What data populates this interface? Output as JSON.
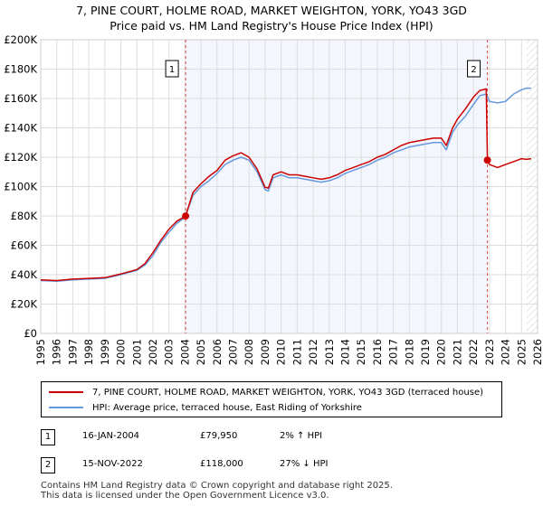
{
  "title_line1": "7, PINE COURT, HOLME ROAD, MARKET WEIGHTON, YORK, YO43 3GD",
  "title_line2": "Price paid vs. HM Land Registry's House Price Index (HPI)",
  "colors": {
    "price_line": "#cc0000",
    "hpi_line": "#6699dd",
    "sale_marker_line": "#dd4444",
    "highlight_band": "#dde6f5",
    "grid": "#dddddd"
  },
  "legend": {
    "price_label": "7, PINE COURT, HOLME ROAD, MARKET WEIGHTON, YORK, YO43 3GD (terraced house)",
    "hpi_label": "HPI: Average price, terraced house, East Riding of Yorkshire"
  },
  "sales": [
    {
      "num": "1",
      "date": "16-JAN-2004",
      "price": "£79,950",
      "hpi": "2% ↑ HPI"
    },
    {
      "num": "2",
      "date": "15-NOV-2022",
      "price": "£118,000",
      "hpi": "27% ↓ HPI"
    }
  ],
  "footer_line1": "Contains HM Land Registry data © Crown copyright and database right 2025.",
  "footer_line2": "This data is licensed under the Open Government Licence v3.0.",
  "chart_data": {
    "type": "line",
    "title": "Price paid vs. HM Land Registry's House Price Index (HPI)",
    "xlim": [
      1995,
      2026
    ],
    "ylim": [
      0,
      200000
    ],
    "x_ticks": [
      1995,
      1996,
      1997,
      1998,
      1999,
      2000,
      2001,
      2002,
      2003,
      2004,
      2005,
      2006,
      2007,
      2008,
      2009,
      2010,
      2011,
      2012,
      2013,
      2014,
      2015,
      2016,
      2017,
      2018,
      2019,
      2020,
      2021,
      2022,
      2023,
      2024,
      2025,
      2026
    ],
    "y_ticks": [
      0,
      20000,
      40000,
      60000,
      80000,
      100000,
      120000,
      140000,
      160000,
      180000,
      200000
    ],
    "y_tick_labels": [
      "£0",
      "£20K",
      "£40K",
      "£60K",
      "£80K",
      "£100K",
      "£120K",
      "£140K",
      "£160K",
      "£180K",
      "£200K"
    ],
    "future_from": 2025.3,
    "sale_markers": [
      {
        "label": "1",
        "x": 2004.04,
        "y": 79950
      },
      {
        "label": "2",
        "x": 2022.87,
        "y": 118000
      }
    ],
    "series": [
      {
        "name": "HPI: Average price, terraced house, East Riding of Yorkshire",
        "x": [
          1995,
          1996,
          1997,
          1998,
          1999,
          2000,
          2001,
          2001.5,
          2002,
          2002.5,
          2003,
          2003.5,
          2004,
          2004.5,
          2005,
          2005.5,
          2006,
          2006.5,
          2007,
          2007.5,
          2008,
          2008.5,
          2009,
          2009.2,
          2009.5,
          2010,
          2010.5,
          2011,
          2011.5,
          2012,
          2012.5,
          2013,
          2013.5,
          2014,
          2014.5,
          2015,
          2015.5,
          2016,
          2016.5,
          2017,
          2017.5,
          2018,
          2018.5,
          2019,
          2019.5,
          2020,
          2020.3,
          2020.7,
          2021,
          2021.5,
          2022,
          2022.4,
          2022.8,
          2023,
          2023.5,
          2024,
          2024.5,
          2025,
          2025.3,
          2025.6
        ],
        "y": [
          36000,
          35500,
          36500,
          37000,
          37500,
          40000,
          43000,
          46500,
          53000,
          62000,
          69000,
          75000,
          79000,
          94000,
          100000,
          104000,
          109000,
          115000,
          118000,
          120000,
          118000,
          110000,
          98000,
          97000,
          106000,
          108000,
          106000,
          106000,
          105000,
          104000,
          103000,
          104000,
          106000,
          109000,
          111000,
          113000,
          115000,
          118000,
          120000,
          123000,
          125000,
          127000,
          128000,
          129000,
          130000,
          130000,
          125000,
          137000,
          142000,
          148000,
          156000,
          162000,
          163000,
          158000,
          157000,
          158000,
          163000,
          166000,
          167000,
          167000
        ]
      },
      {
        "name": "7, PINE COURT, HOLME ROAD, MARKET WEIGHTON, YORK, YO43 3GD (terraced house)",
        "x": [
          1995,
          1996,
          1997,
          1998,
          1999,
          2000,
          2001,
          2001.5,
          2002,
          2002.5,
          2003,
          2003.5,
          2004.04,
          2004.5,
          2005,
          2005.5,
          2006,
          2006.5,
          2007,
          2007.5,
          2008,
          2008.5,
          2009,
          2009.2,
          2009.5,
          2010,
          2010.5,
          2011,
          2011.5,
          2012,
          2012.5,
          2013,
          2013.5,
          2014,
          2014.5,
          2015,
          2015.5,
          2016,
          2016.5,
          2017,
          2017.5,
          2018,
          2018.5,
          2019,
          2019.5,
          2020,
          2020.3,
          2020.7,
          2021,
          2021.5,
          2022,
          2022.4,
          2022.8,
          2022.87,
          2023,
          2023.5,
          2024,
          2024.5,
          2025,
          2025.3,
          2025.6
        ],
        "y": [
          36500,
          36000,
          37000,
          37500,
          38000,
          40500,
          43500,
          47500,
          55000,
          63500,
          71000,
          76500,
          79950,
          96000,
          102000,
          107000,
          111000,
          118000,
          121000,
          123000,
          120000,
          112000,
          99500,
          99000,
          108000,
          110000,
          108000,
          108000,
          107000,
          106000,
          105000,
          106000,
          108000,
          111000,
          113000,
          115000,
          117000,
          120000,
          122000,
          125000,
          128000,
          130000,
          131000,
          132000,
          133000,
          133000,
          128000,
          140000,
          146000,
          153000,
          161000,
          165500,
          166500,
          118000,
          115000,
          113000,
          115000,
          117000,
          119000,
          118500,
          119000
        ]
      }
    ]
  }
}
